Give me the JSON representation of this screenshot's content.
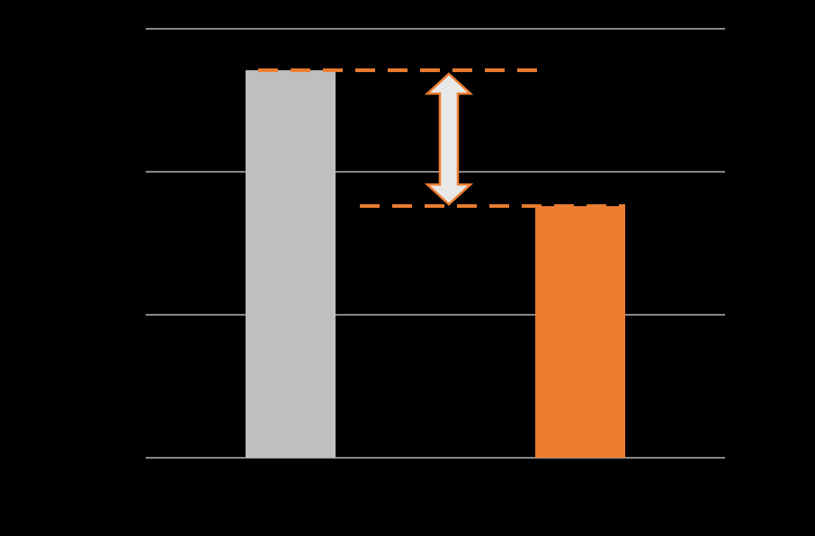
{
  "chart_data": {
    "type": "bar",
    "categories": [
      null,
      null
    ],
    "values": [
      2.71,
      1.76
    ],
    "colors": [
      "#bfbfbf",
      "#ed7d31"
    ],
    "ylim": [
      0,
      3
    ],
    "yticks": [
      0,
      1,
      2,
      3
    ],
    "grid": true,
    "annotation_color": "#ed7d31"
  }
}
